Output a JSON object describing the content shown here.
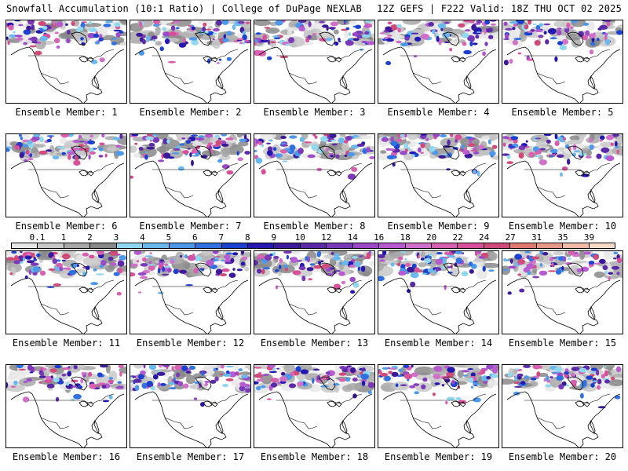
{
  "header": {
    "title": "Snowfall Accumulation (10:1 Ratio) | College of DuPage NEXLAB",
    "run_info": "12Z GEFS | F222 Valid: 18Z THU OCT 02 2025"
  },
  "panels": [
    {
      "label": "Ensemble Member: 1"
    },
    {
      "label": "Ensemble Member: 2"
    },
    {
      "label": "Ensemble Member: 3"
    },
    {
      "label": "Ensemble Member: 4"
    },
    {
      "label": "Ensemble Member: 5"
    },
    {
      "label": "Ensemble Member: 6"
    },
    {
      "label": "Ensemble Member: 7"
    },
    {
      "label": "Ensemble Member: 8"
    },
    {
      "label": "Ensemble Member: 9"
    },
    {
      "label": "Ensemble Member: 10"
    },
    {
      "label": "Ensemble Member: 11"
    },
    {
      "label": "Ensemble Member: 12"
    },
    {
      "label": "Ensemble Member: 13"
    },
    {
      "label": "Ensemble Member: 14"
    },
    {
      "label": "Ensemble Member: 15"
    },
    {
      "label": "Ensemble Member: 16"
    },
    {
      "label": "Ensemble Member: 17"
    },
    {
      "label": "Ensemble Member: 18"
    },
    {
      "label": "Ensemble Member: 19"
    },
    {
      "label": "Ensemble Member: 20"
    }
  ],
  "colorbar": {
    "labels": [
      "0.1",
      "1",
      "2",
      "3",
      "4",
      "5",
      "6",
      "7",
      "8",
      "9",
      "10",
      "12",
      "14",
      "16",
      "18",
      "20",
      "22",
      "24",
      "27",
      "31",
      "35",
      "39"
    ],
    "colors": [
      "#e8e8e8",
      "#c8c8c8",
      "#a8a8a8",
      "#888888",
      "#8fd8f0",
      "#6ab8ec",
      "#4d98e8",
      "#3070e0",
      "#1c40d0",
      "#2418b0",
      "#3a1a98",
      "#5a2aa8",
      "#7a3ab8",
      "#9a4ac8",
      "#b85ad0",
      "#d070c8",
      "#d860b0",
      "#d8509a",
      "#d04a7a",
      "#e07a70",
      "#e89a88",
      "#f0bca8",
      "#f8dcc8"
    ]
  }
}
